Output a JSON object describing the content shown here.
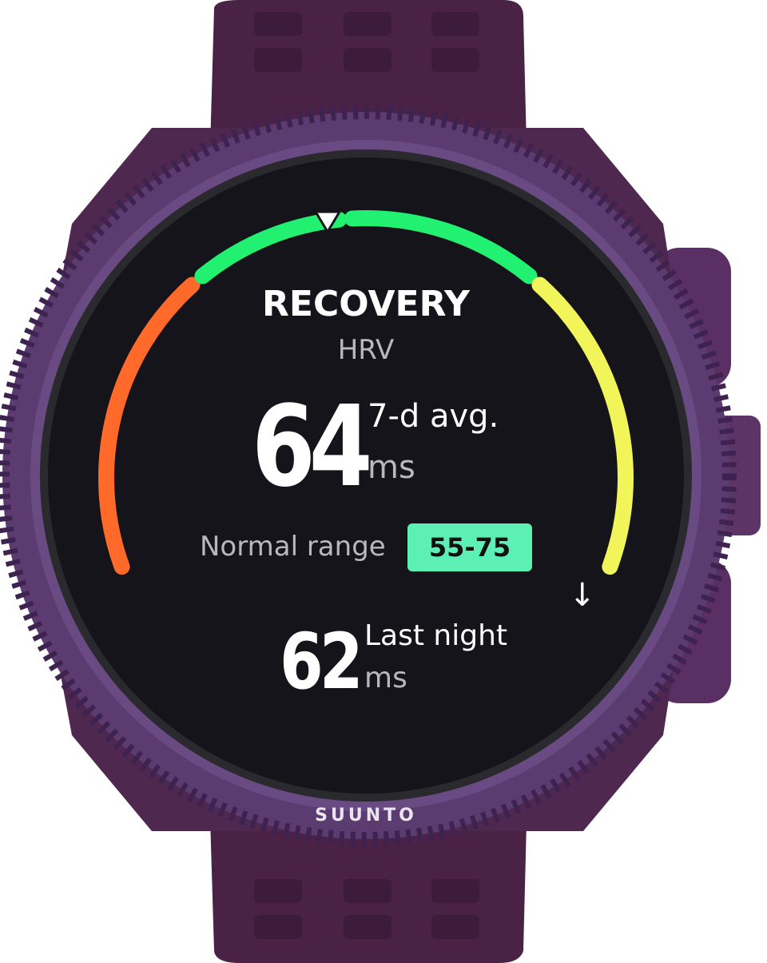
{
  "device": {
    "brand": "SUUNTO"
  },
  "screen": {
    "title": "RECOVERY",
    "subtitle": "HRV",
    "primary": {
      "value": "64",
      "label": "7-d avg.",
      "unit": "ms"
    },
    "normal_range": {
      "label": "Normal range",
      "value": "55-75"
    },
    "secondary": {
      "value": "62",
      "label": "Last night",
      "unit": "ms"
    },
    "scroll_icon": "arrow-down-icon",
    "scroll_glyph": "↓"
  },
  "colors": {
    "strap": "#4a2246",
    "bezel": "#5b3b70",
    "screen": "#14141a",
    "arc_low": "#ff6a2a",
    "arc_normal": "#22f070",
    "arc_high": "#f2f55a",
    "range_badge": "#5cf0b4"
  }
}
